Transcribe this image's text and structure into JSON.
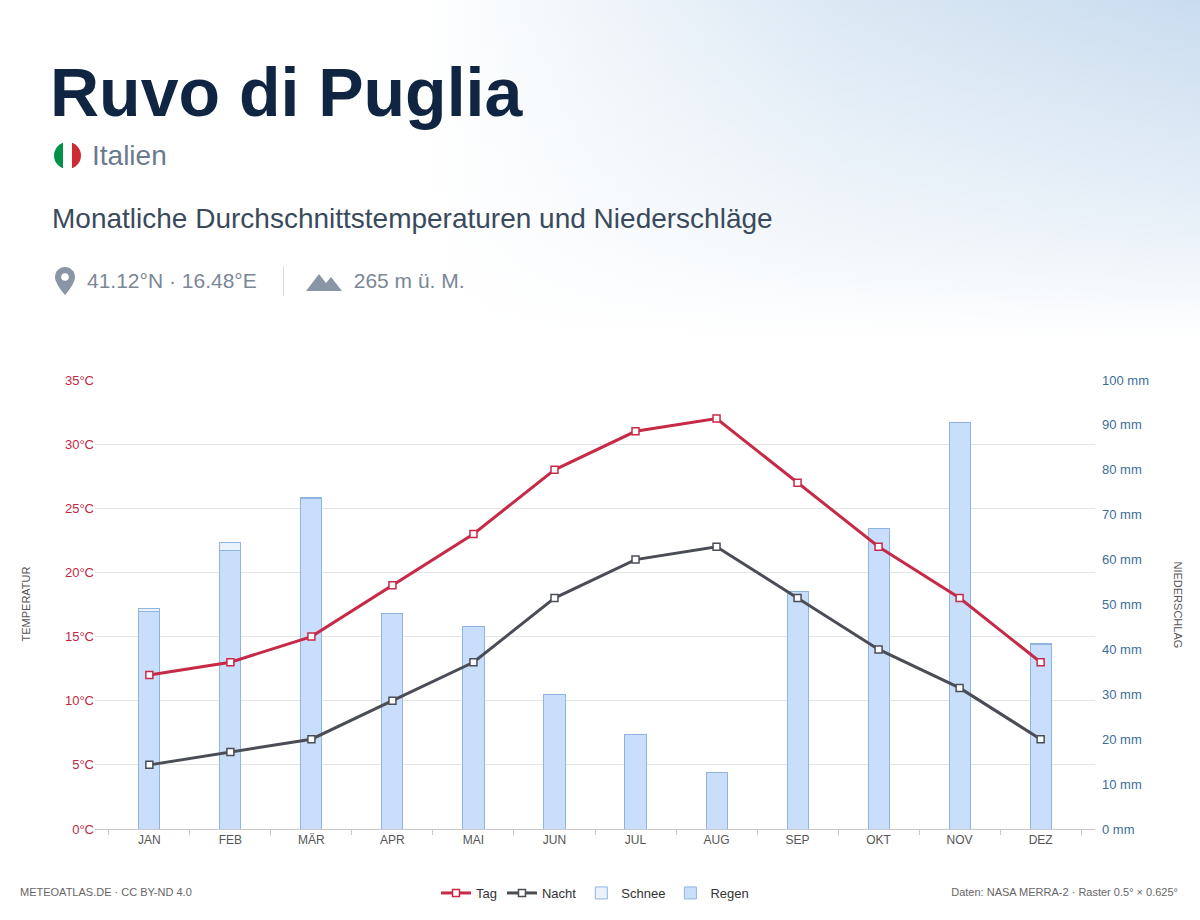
{
  "chart_data": {
    "type": "bar",
    "title": "Ruvo di Puglia",
    "subtitle": "Monatliche Durchschnittstemperaturen und Niederschläge",
    "annotations": [
      "Italien",
      "41.12°N · 16.48°E",
      "265 m ü. M.",
      "METEOATLAS.DE · CC BY-ND 4.0",
      "Daten: NASA MERRA-2 · Raster 0.5° × 0.625°"
    ],
    "ylabel": "TEMPERATUR",
    "y2label": "NIEDERSCHLAG",
    "categories": [
      "JAN",
      "FEB",
      "MÄR",
      "APR",
      "MAI",
      "JUN",
      "JUL",
      "AUG",
      "SEP",
      "OKT",
      "NOV",
      "DEZ"
    ],
    "series": [
      {
        "name": "Tag",
        "type": "line",
        "color": "#c62a47",
        "marker": "square",
        "values": [
          12,
          13,
          15,
          19,
          23,
          28,
          31,
          32,
          27,
          22,
          18,
          13
        ]
      },
      {
        "name": "Nacht",
        "type": "line",
        "color": "#4a4d55",
        "marker": "square",
        "values": [
          5,
          6,
          7,
          10,
          13,
          18,
          21,
          22,
          18,
          14,
          11,
          7
        ]
      },
      {
        "name": "Schnee",
        "type": "bar",
        "axis": "y2",
        "color": "#eaf2fc",
        "values": [
          0.5,
          1.8,
          0.3,
          0,
          0,
          0,
          0,
          0,
          0,
          0,
          0,
          0.3
        ]
      },
      {
        "name": "Regen",
        "type": "bar",
        "axis": "y2",
        "color": "#c9defa",
        "values": [
          48.5,
          62,
          73.5,
          48,
          45,
          30,
          21,
          12.5,
          53,
          67,
          90.5,
          41
        ]
      }
    ],
    "ylim": [
      0,
      35
    ],
    "yticks": [
      {
        "value": 0,
        "label": "0°C"
      },
      {
        "value": 5,
        "label": "5°C"
      },
      {
        "value": 10,
        "label": "10°C"
      },
      {
        "value": 15,
        "label": "15°C"
      },
      {
        "value": 20,
        "label": "20°C"
      },
      {
        "value": 25,
        "label": "25°C"
      },
      {
        "value": 30,
        "label": "30°C"
      },
      {
        "value": 35,
        "label": "35°C"
      }
    ],
    "y2lim": [
      0,
      100
    ],
    "y2ticks": [
      {
        "value": 0,
        "label": "0 mm"
      },
      {
        "value": 10,
        "label": "10 mm"
      },
      {
        "value": 20,
        "label": "20 mm"
      },
      {
        "value": 30,
        "label": "30 mm"
      },
      {
        "value": 40,
        "label": "40 mm"
      },
      {
        "value": 50,
        "label": "50 mm"
      },
      {
        "value": 60,
        "label": "60 mm"
      },
      {
        "value": 70,
        "label": "70 mm"
      },
      {
        "value": 80,
        "label": "80 mm"
      },
      {
        "value": 90,
        "label": "90 mm"
      },
      {
        "value": 100,
        "label": "100 mm"
      }
    ],
    "stacked": true,
    "grid": true,
    "legend": "bottom"
  }
}
